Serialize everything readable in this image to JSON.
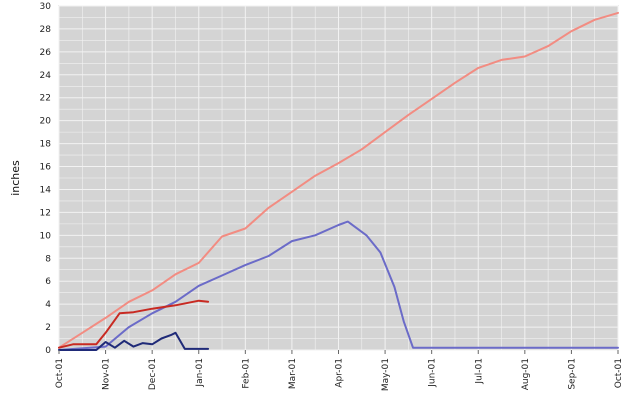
{
  "chart_data": {
    "type": "line",
    "title": "",
    "xlabel": "",
    "ylabel": "inches",
    "ylim": [
      0,
      30
    ],
    "y_ticks": [
      0,
      2,
      4,
      6,
      8,
      10,
      12,
      14,
      16,
      18,
      20,
      22,
      24,
      26,
      28,
      30
    ],
    "x_tick_labels": [
      "Oct-01",
      "Nov-01",
      "Dec-01",
      "Jan-01",
      "Feb-01",
      "Mar-01",
      "Apr-01",
      "May-01",
      "Jun-01",
      "Jul-01",
      "Aug-01",
      "Sep-01",
      "Oct-01"
    ],
    "x_units": "months since Oct-01",
    "xlim": [
      0,
      12
    ],
    "grid": true,
    "background": "#d4d4d4",
    "grid_color": "#f2f2f2",
    "series": [
      {
        "color": "#f28c82",
        "x": [
          0,
          0.5,
          1,
          1.5,
          2,
          2.5,
          3,
          3.5,
          4,
          4.5,
          5,
          5.5,
          6,
          6.5,
          7,
          7.5,
          8,
          8.5,
          9,
          9.5,
          10,
          10.5,
          11,
          11.5,
          12
        ],
        "y": [
          0.2,
          1.5,
          2.8,
          4.2,
          5.2,
          6.6,
          7.6,
          9.9,
          10.6,
          12.4,
          13.8,
          15.2,
          16.3,
          17.5,
          19.0,
          20.5,
          21.9,
          23.3,
          24.6,
          25.3,
          25.6,
          26.5,
          27.8,
          28.8,
          29.4
        ]
      },
      {
        "color": "#6b6bc8",
        "x": [
          0,
          1,
          1.5,
          2,
          2.5,
          3,
          3.5,
          4,
          4.5,
          5,
          5.5,
          6,
          6.2,
          6.6,
          6.9,
          7.2,
          7.4,
          7.6,
          8,
          9,
          10,
          11,
          12
        ],
        "y": [
          0,
          0.3,
          2.0,
          3.2,
          4.2,
          5.6,
          6.5,
          7.4,
          8.2,
          9.5,
          10.0,
          10.9,
          11.2,
          10.0,
          8.5,
          5.5,
          2.5,
          0.2,
          0.2,
          0.2,
          0.2,
          0.2,
          0.2
        ]
      },
      {
        "color": "#c82a22",
        "x": [
          0,
          0.3,
          0.8,
          1.0,
          1.3,
          1.6,
          2.0,
          2.5,
          3.0,
          3.2
        ],
        "y": [
          0.2,
          0.5,
          0.5,
          1.5,
          3.2,
          3.3,
          3.6,
          3.9,
          4.3,
          4.2
        ]
      },
      {
        "color": "#1f2a78",
        "x": [
          0,
          0.8,
          1.0,
          1.2,
          1.4,
          1.6,
          1.8,
          2.0,
          2.2,
          2.4,
          2.5,
          2.7,
          3.2
        ],
        "y": [
          0,
          0,
          0.7,
          0.2,
          0.8,
          0.3,
          0.6,
          0.5,
          1.0,
          1.3,
          1.5,
          0.1,
          0.1
        ]
      }
    ]
  }
}
